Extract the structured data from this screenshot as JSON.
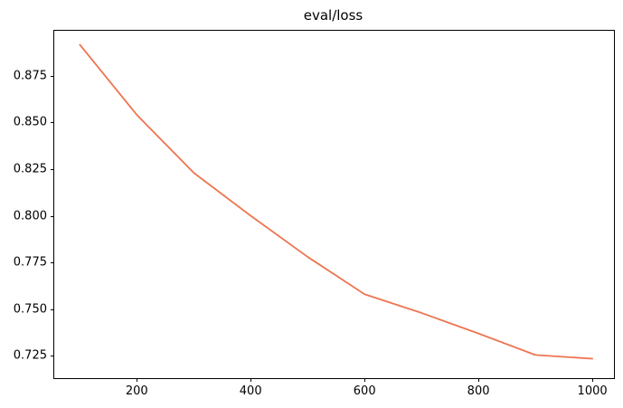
{
  "figure": {
    "background_color": "#ffffff",
    "spine_color": "#000000",
    "tick_color": "#000000",
    "text_color": "#000000"
  },
  "chart_data": {
    "type": "line",
    "title": "eval/loss",
    "xlabel": "",
    "ylabel": "",
    "x": [
      100,
      200,
      300,
      400,
      500,
      600,
      700,
      800,
      900,
      1000
    ],
    "values": [
      0.8915,
      0.854,
      0.823,
      0.8,
      0.778,
      0.758,
      0.748,
      0.737,
      0.7255,
      0.7235
    ],
    "series_name": "eval/loss",
    "line_color": "#ee7450",
    "line_width": 1.8,
    "xlim": [
      55,
      1038
    ],
    "ylim": [
      0.7131,
      0.899
    ],
    "xticks": [
      200,
      400,
      600,
      800,
      1000
    ],
    "xtick_labels": [
      "200",
      "400",
      "600",
      "800",
      "1000"
    ],
    "yticks": [
      0.875,
      0.85,
      0.825,
      0.8,
      0.775,
      0.75,
      0.725
    ],
    "ytick_labels": [
      "0.875",
      "0.850",
      "0.825",
      "0.800",
      "0.775",
      "0.750",
      "0.725"
    ],
    "grid": false,
    "legend": "none",
    "marker": "none"
  }
}
